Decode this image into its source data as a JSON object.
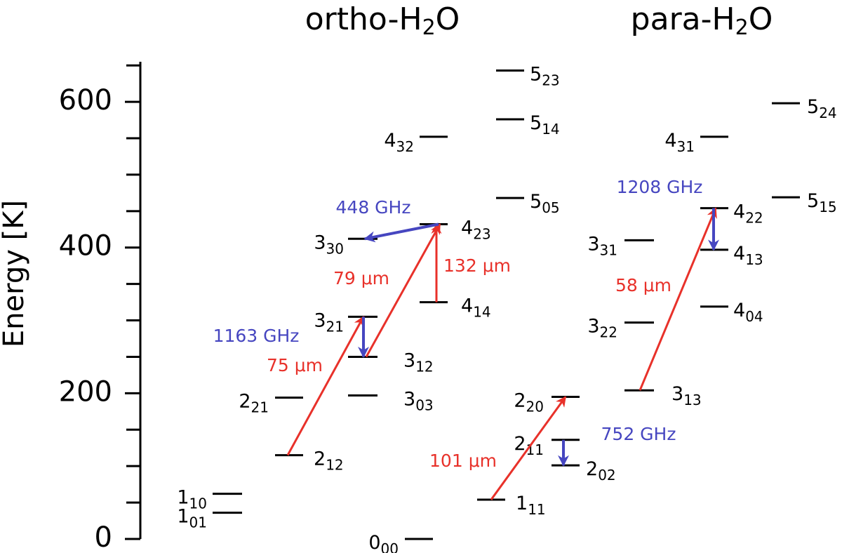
{
  "chart_data": {
    "type": "levels",
    "titles": [
      {
        "text": "ortho-H",
        "sub": "2",
        "after": "O"
      },
      {
        "text": "para-H",
        "sub": "2",
        "after": "O"
      }
    ],
    "ylabel": "Energy [K]",
    "ylim": [
      0,
      655
    ],
    "yticks": [
      0,
      200,
      400,
      600
    ],
    "minor_yticks": [
      50,
      100,
      150,
      250,
      300,
      350,
      450,
      500,
      550,
      650
    ],
    "level_color": "#000000",
    "levels": [
      {
        "J": "1",
        "sub": "10",
        "energy": 62
      },
      {
        "J": "1",
        "sub": "01",
        "energy": 36
      },
      {
        "J": "2",
        "sub": "12",
        "energy": 115
      },
      {
        "J": "2",
        "sub": "21",
        "energy": 194
      },
      {
        "J": "3",
        "sub": "21",
        "energy": 305
      },
      {
        "J": "3",
        "sub": "12",
        "energy": 250
      },
      {
        "J": "3",
        "sub": "03",
        "energy": 197
      },
      {
        "J": "3",
        "sub": "30",
        "energy": 412
      },
      {
        "J": "0",
        "sub": "00",
        "energy": 0
      },
      {
        "J": "4",
        "sub": "14",
        "energy": 325
      },
      {
        "J": "4",
        "sub": "23",
        "energy": 432
      },
      {
        "J": "4",
        "sub": "32",
        "energy": 552
      },
      {
        "J": "5",
        "sub": "05",
        "energy": 468
      },
      {
        "J": "5",
        "sub": "14",
        "energy": 576
      },
      {
        "J": "5",
        "sub": "23",
        "energy": 643
      },
      {
        "J": "1",
        "sub": "11",
        "energy": 54
      },
      {
        "J": "2",
        "sub": "02",
        "energy": 101
      },
      {
        "J": "2",
        "sub": "11",
        "energy": 136
      },
      {
        "J": "2",
        "sub": "20",
        "energy": 195
      },
      {
        "J": "3",
        "sub": "13",
        "energy": 204
      },
      {
        "J": "3",
        "sub": "22",
        "energy": 297
      },
      {
        "J": "3",
        "sub": "31",
        "energy": 410
      },
      {
        "J": "4",
        "sub": "04",
        "energy": 319
      },
      {
        "J": "4",
        "sub": "13",
        "energy": 397
      },
      {
        "J": "4",
        "sub": "22",
        "energy": 454
      },
      {
        "J": "4",
        "sub": "31",
        "energy": 552
      },
      {
        "J": "5",
        "sub": "15",
        "energy": 469
      },
      {
        "J": "5",
        "sub": "24",
        "energy": 598
      }
    ],
    "transitions": [
      {
        "label": "75 μm",
        "from": 2,
        "to": 4,
        "color": "#e8312a"
      },
      {
        "label": "79 μm",
        "from": 5,
        "to": 10,
        "color": "#e8312a"
      },
      {
        "label": "132 μm",
        "from": 9,
        "to": 10,
        "color": "#e8312a"
      },
      {
        "label": "1163 GHz",
        "from": 4,
        "to": 5,
        "color": "#4646c0"
      },
      {
        "label": "448 GHz",
        "from": 10,
        "to": 7,
        "color": "#4646c0"
      },
      {
        "label": "101 μm",
        "from": 15,
        "to": 18,
        "color": "#e8312a"
      },
      {
        "label": "752 GHz",
        "from": 17,
        "to": 16,
        "color": "#4646c0"
      },
      {
        "label": "58 μm",
        "from": 19,
        "to": 24,
        "color": "#e8312a"
      },
      {
        "label": "1208 GHz",
        "from": 24,
        "to": 23,
        "color": "#4646c0"
      }
    ]
  }
}
